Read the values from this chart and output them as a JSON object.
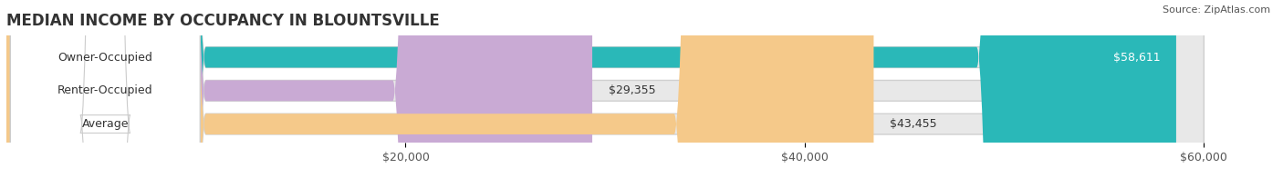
{
  "title": "MEDIAN INCOME BY OCCUPANCY IN BLOUNTSVILLE",
  "source": "Source: ZipAtlas.com",
  "categories": [
    "Owner-Occupied",
    "Renter-Occupied",
    "Average"
  ],
  "values": [
    58611,
    29355,
    43455
  ],
  "bar_colors": [
    "#2ab8b8",
    "#c9aad4",
    "#f5c98a"
  ],
  "bar_labels": [
    "$58,611",
    "$29,355",
    "$43,455"
  ],
  "label_inside": [
    true,
    false,
    false
  ],
  "xlim": [
    0,
    63000
  ],
  "data_max": 60000,
  "xticks": [
    20000,
    40000,
    60000
  ],
  "xticklabels": [
    "$20,000",
    "$40,000",
    "$60,000"
  ],
  "background_color": "#ffffff",
  "bar_background_color": "#e8e8e8",
  "title_fontsize": 12,
  "label_fontsize": 9,
  "tick_fontsize": 9,
  "source_fontsize": 8
}
